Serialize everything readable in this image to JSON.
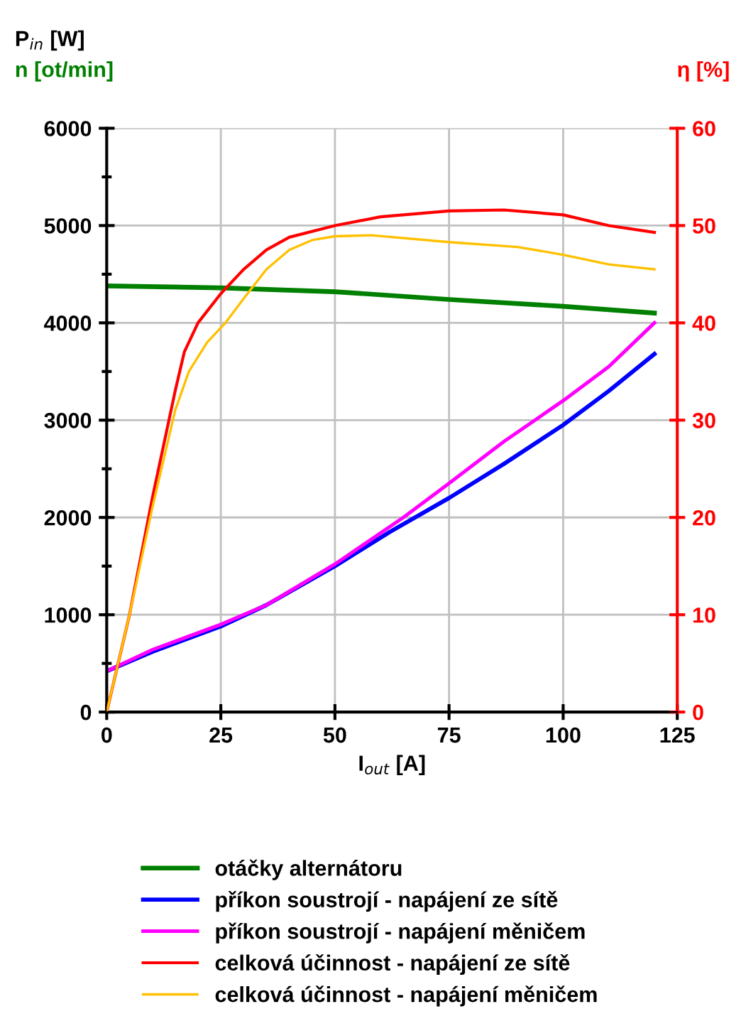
{
  "chart_data": {
    "type": "line",
    "ylabel": "P$_{in}$ [W]",
    "y2label": "η [%]",
    "xlabel": "I$_{out}$ [A]",
    "xlim": [
      0,
      125
    ],
    "xticks": [
      0,
      25,
      50,
      75,
      100,
      125
    ],
    "ylim": [
      0,
      6000
    ],
    "yticks": [
      0,
      {
        "value": 500,
        "label": null
      },
      1000,
      {
        "value": 1500,
        "label": null
      },
      2000,
      {
        "value": 2500,
        "label": null
      },
      3000,
      {
        "value": 3500,
        "label": null
      },
      4000,
      {
        "value": 4500,
        "label": null
      },
      5000,
      {
        "value": 5500,
        "label": null
      },
      6000
    ],
    "y2lim": [
      0,
      60
    ],
    "y2ticks": [
      0,
      10,
      20,
      30,
      40,
      50,
      60
    ],
    "grid": true,
    "legend": "bottom",
    "series": [
      {
        "name": "otáčky alternátoru",
        "color": "#008000",
        "x": [
          0,
          25,
          50,
          75,
          100,
          120
        ],
        "values": [
          4380,
          4360,
          4320,
          4240,
          4170,
          4100
        ]
      },
      {
        "name": "příkon soustrojí - napájení ze sítě",
        "color": "#0000ff",
        "x": [
          0,
          10,
          25,
          35,
          50,
          62,
          75,
          87,
          100,
          110,
          120
        ],
        "values": [
          420,
          620,
          880,
          1100,
          1500,
          1850,
          2200,
          2550,
          2950,
          3300,
          3680
        ]
      },
      {
        "name": "příkon soustrojí - napájení měničem",
        "color": "#ff00ff",
        "x": [
          0,
          10,
          25,
          35,
          50,
          65,
          75,
          87,
          100,
          110,
          120
        ],
        "values": [
          420,
          640,
          900,
          1100,
          1520,
          2000,
          2350,
          2780,
          3200,
          3550,
          4000
        ]
      },
      {
        "name": "celková účinnost - napájení ze sítě",
        "color": "#ff0000",
        "axis": "y2",
        "x": [
          0,
          5,
          10,
          15,
          17,
          20,
          25,
          30,
          35,
          40,
          50,
          60,
          75,
          87,
          100,
          110,
          120
        ],
        "values": [
          0,
          10,
          22,
          33,
          37,
          40,
          43,
          45.5,
          47.5,
          48.8,
          50,
          50.9,
          51.5,
          51.6,
          51.1,
          50,
          49.3
        ]
      },
      {
        "name": "celková účinnost - napájení měničem",
        "color": "#ffc000",
        "axis": "y2",
        "x": [
          0,
          5,
          10,
          15,
          18,
          22,
          26,
          30,
          35,
          40,
          45,
          50,
          58,
          75,
          90,
          100,
          110,
          120
        ],
        "values": [
          0,
          10,
          21,
          31,
          35,
          38,
          40,
          42.5,
          45.5,
          47.5,
          48.5,
          48.9,
          49,
          48.3,
          47.8,
          47,
          46,
          45.5
        ]
      }
    ],
    "annotations": [
      "n [ot/min]"
    ]
  }
}
